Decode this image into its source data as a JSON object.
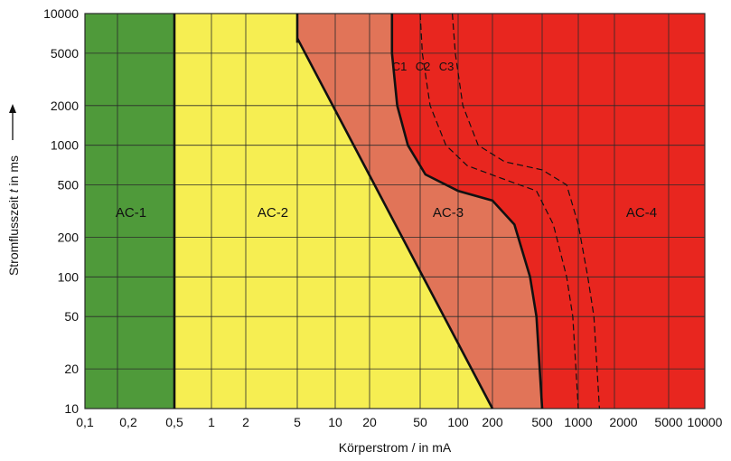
{
  "chart_data": {
    "type": "area",
    "title": "",
    "xlabel": "Körperstrom / in mA",
    "ylabel_parts": [
      "Stromflusszeit ",
      "t",
      " in ms"
    ],
    "x_scale": "log-like (categorical grid)",
    "y_scale": "log",
    "xlim": [
      0.1,
      10000
    ],
    "ylim": [
      10,
      10000
    ],
    "x_tick_labels": [
      "0,1",
      "0,2",
      "0,5",
      "1",
      "2",
      "5",
      "10",
      "20",
      "50",
      "100",
      "200",
      "500",
      "1000",
      "2000",
      "5000",
      "10000"
    ],
    "y_tick_labels": [
      "10",
      "20",
      "50",
      "100",
      "200",
      "500",
      "1000",
      "2000",
      "5000",
      "10000"
    ],
    "y_ticks": [
      10,
      20,
      50,
      100,
      200,
      500,
      1000,
      2000,
      5000,
      10000
    ],
    "grid": true,
    "zones": [
      {
        "name": "AC-1",
        "label": "AC-1",
        "color": "#4f9a3a"
      },
      {
        "name": "AC-2",
        "label": "AC-2",
        "color": "#f6ee52"
      },
      {
        "name": "AC-3",
        "label": "AC-3",
        "color": "#e17458"
      },
      {
        "name": "AC-4",
        "label": "AC-4",
        "color": "#e8261f"
      }
    ],
    "curves": [
      {
        "name": "a",
        "style": "solid",
        "points": [
          [
            0.5,
            10
          ],
          [
            0.5,
            10000
          ]
        ]
      },
      {
        "name": "b",
        "style": "solid",
        "points": [
          [
            5,
            6000
          ],
          [
            5,
            10000
          ]
        ]
      },
      {
        "name": "b-slope",
        "style": "solid",
        "points": [
          [
            5,
            6500
          ],
          [
            200,
            10
          ]
        ]
      },
      {
        "name": "C1",
        "label": "C1",
        "style": "solid",
        "points": [
          [
            30,
            10000
          ],
          [
            30,
            5000
          ],
          [
            33,
            2000
          ],
          [
            40,
            1000
          ],
          [
            55,
            600
          ],
          [
            100,
            450
          ],
          [
            200,
            380
          ],
          [
            300,
            250
          ],
          [
            400,
            100
          ],
          [
            450,
            50
          ],
          [
            500,
            10
          ]
        ]
      },
      {
        "name": "C2",
        "label": "C2",
        "style": "dashed",
        "points": [
          [
            50,
            10000
          ],
          [
            52,
            5000
          ],
          [
            60,
            2000
          ],
          [
            80,
            1000
          ],
          [
            120,
            700
          ],
          [
            250,
            550
          ],
          [
            450,
            450
          ],
          [
            620,
            250
          ],
          [
            800,
            100
          ],
          [
            900,
            50
          ],
          [
            1000,
            10
          ]
        ]
      },
      {
        "name": "C3",
        "label": "C3",
        "style": "dashed",
        "points": [
          [
            90,
            10000
          ],
          [
            95,
            5000
          ],
          [
            110,
            2000
          ],
          [
            150,
            1000
          ],
          [
            250,
            750
          ],
          [
            500,
            650
          ],
          [
            800,
            500
          ],
          [
            1000,
            250
          ],
          [
            1200,
            100
          ],
          [
            1350,
            50
          ],
          [
            1500,
            10
          ]
        ]
      }
    ]
  },
  "colors": {
    "grid": "#2a2a2a",
    "boundary": "#111111",
    "text": "#111111"
  }
}
